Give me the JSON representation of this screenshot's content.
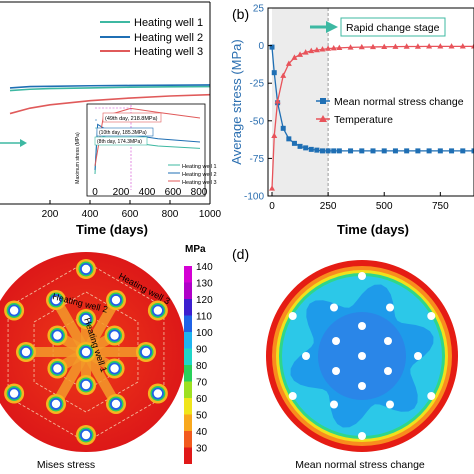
{
  "chart_data": [
    {
      "panel": "",
      "type": "line",
      "xlabel": "Time (days)",
      "x_ticks": [
        "200",
        "400",
        "600",
        "800",
        "1000"
      ],
      "xlim": [
        0,
        1000
      ],
      "series": [
        {
          "name": "Heating well 1",
          "color": "#3db8a2",
          "x": [
            0,
            100,
            200,
            400,
            600,
            800,
            1000
          ],
          "level": [
            0.84,
            0.85,
            0.855,
            0.86,
            0.865,
            0.868,
            0.87
          ]
        },
        {
          "name": "Heating well 2",
          "color": "#1f6fb4",
          "x": [
            0,
            100,
            200,
            400,
            600,
            800,
            1000
          ],
          "level": [
            0.86,
            0.87,
            0.872,
            0.876,
            0.878,
            0.88,
            0.882
          ]
        },
        {
          "name": "Heating well 3",
          "color": "#e05a5a",
          "x": [
            0,
            100,
            200,
            400,
            600,
            800,
            1000
          ],
          "level": [
            0.67,
            0.71,
            0.735,
            0.765,
            0.785,
            0.8,
            0.81
          ]
        }
      ],
      "inset": {
        "ylabel": "Maximum stress (MPa)",
        "x_ticks": [
          "0",
          "200",
          "400",
          "600",
          "800"
        ],
        "annotations": [
          "(49th day, 218.8MPa)",
          "(10th day, 185.3MPa)",
          "(8th day, 174.3MPa)"
        ],
        "legend": [
          "Heating well 1",
          "Heating well 2",
          "Heating well 3"
        ]
      }
    },
    {
      "panel": "(b)",
      "type": "line",
      "title": "",
      "xlabel": "Time (days)",
      "ylabel": "Average stress (MPa)",
      "xlim": [
        -10,
        900
      ],
      "ylim": [
        -100,
        25
      ],
      "x_ticks": [
        0,
        250,
        500,
        750
      ],
      "y_ticks": [
        25,
        0,
        -25,
        -50,
        -75,
        -100
      ],
      "shaded_region": [
        0,
        250
      ],
      "annotation": "Rapid change stage",
      "legend": [
        "Mean normal stress change",
        "Temperature"
      ],
      "series": [
        {
          "name": "Mean normal stress change",
          "color": "#1f6fb4",
          "marker": "square",
          "x": [
            0,
            10,
            25,
            50,
            75,
            100,
            125,
            150,
            175,
            200,
            225,
            250,
            275,
            300,
            350,
            400,
            450,
            500,
            550,
            600,
            650,
            700,
            750,
            800,
            850,
            900
          ],
          "y": [
            -1,
            -18,
            -38,
            -55,
            -62,
            -65,
            -67,
            -68,
            -69,
            -69.5,
            -70,
            -70,
            -70,
            -70,
            -70,
            -70,
            -70,
            -70,
            -70,
            -70,
            -70,
            -70,
            -70,
            -70,
            -70,
            -70
          ]
        },
        {
          "name": "Temperature",
          "color": "#e8535a",
          "marker": "triangle",
          "x": [
            0,
            10,
            25,
            50,
            75,
            100,
            125,
            150,
            175,
            200,
            225,
            250,
            275,
            300,
            350,
            400,
            450,
            500,
            550,
            600,
            650,
            700,
            750,
            800,
            850,
            900
          ],
          "y": [
            -95,
            -60,
            -37,
            -20,
            -12,
            -8,
            -6,
            -4.5,
            -3.5,
            -3,
            -2.5,
            -2,
            -1.7,
            -1.5,
            -1.2,
            -1,
            -0.9,
            -0.8,
            -0.7,
            -0.6,
            -0.6,
            -0.5,
            -0.5,
            -0.5,
            -0.5,
            -0.5
          ]
        }
      ]
    },
    {
      "panel": "",
      "type": "heatmap",
      "caption": "Mises stress",
      "colorbar_unit": "MPa",
      "colorbar_ticks": [
        140,
        130,
        120,
        110,
        100,
        90,
        80,
        70,
        60,
        50,
        40,
        30
      ],
      "colorbar_colors": [
        "#d400d4",
        "#b000c8",
        "#3c1ecf",
        "#1f62e6",
        "#1fb4f0",
        "#1fd6c8",
        "#29d05a",
        "#9ee022",
        "#f0e51c",
        "#f8a81e",
        "#f25a1e",
        "#e01818"
      ],
      "labels": [
        "Heating well 3",
        "Heating well 2",
        "Heating well 1"
      ]
    },
    {
      "panel": "(d)",
      "type": "heatmap",
      "caption": "Mean normal stress change"
    }
  ]
}
